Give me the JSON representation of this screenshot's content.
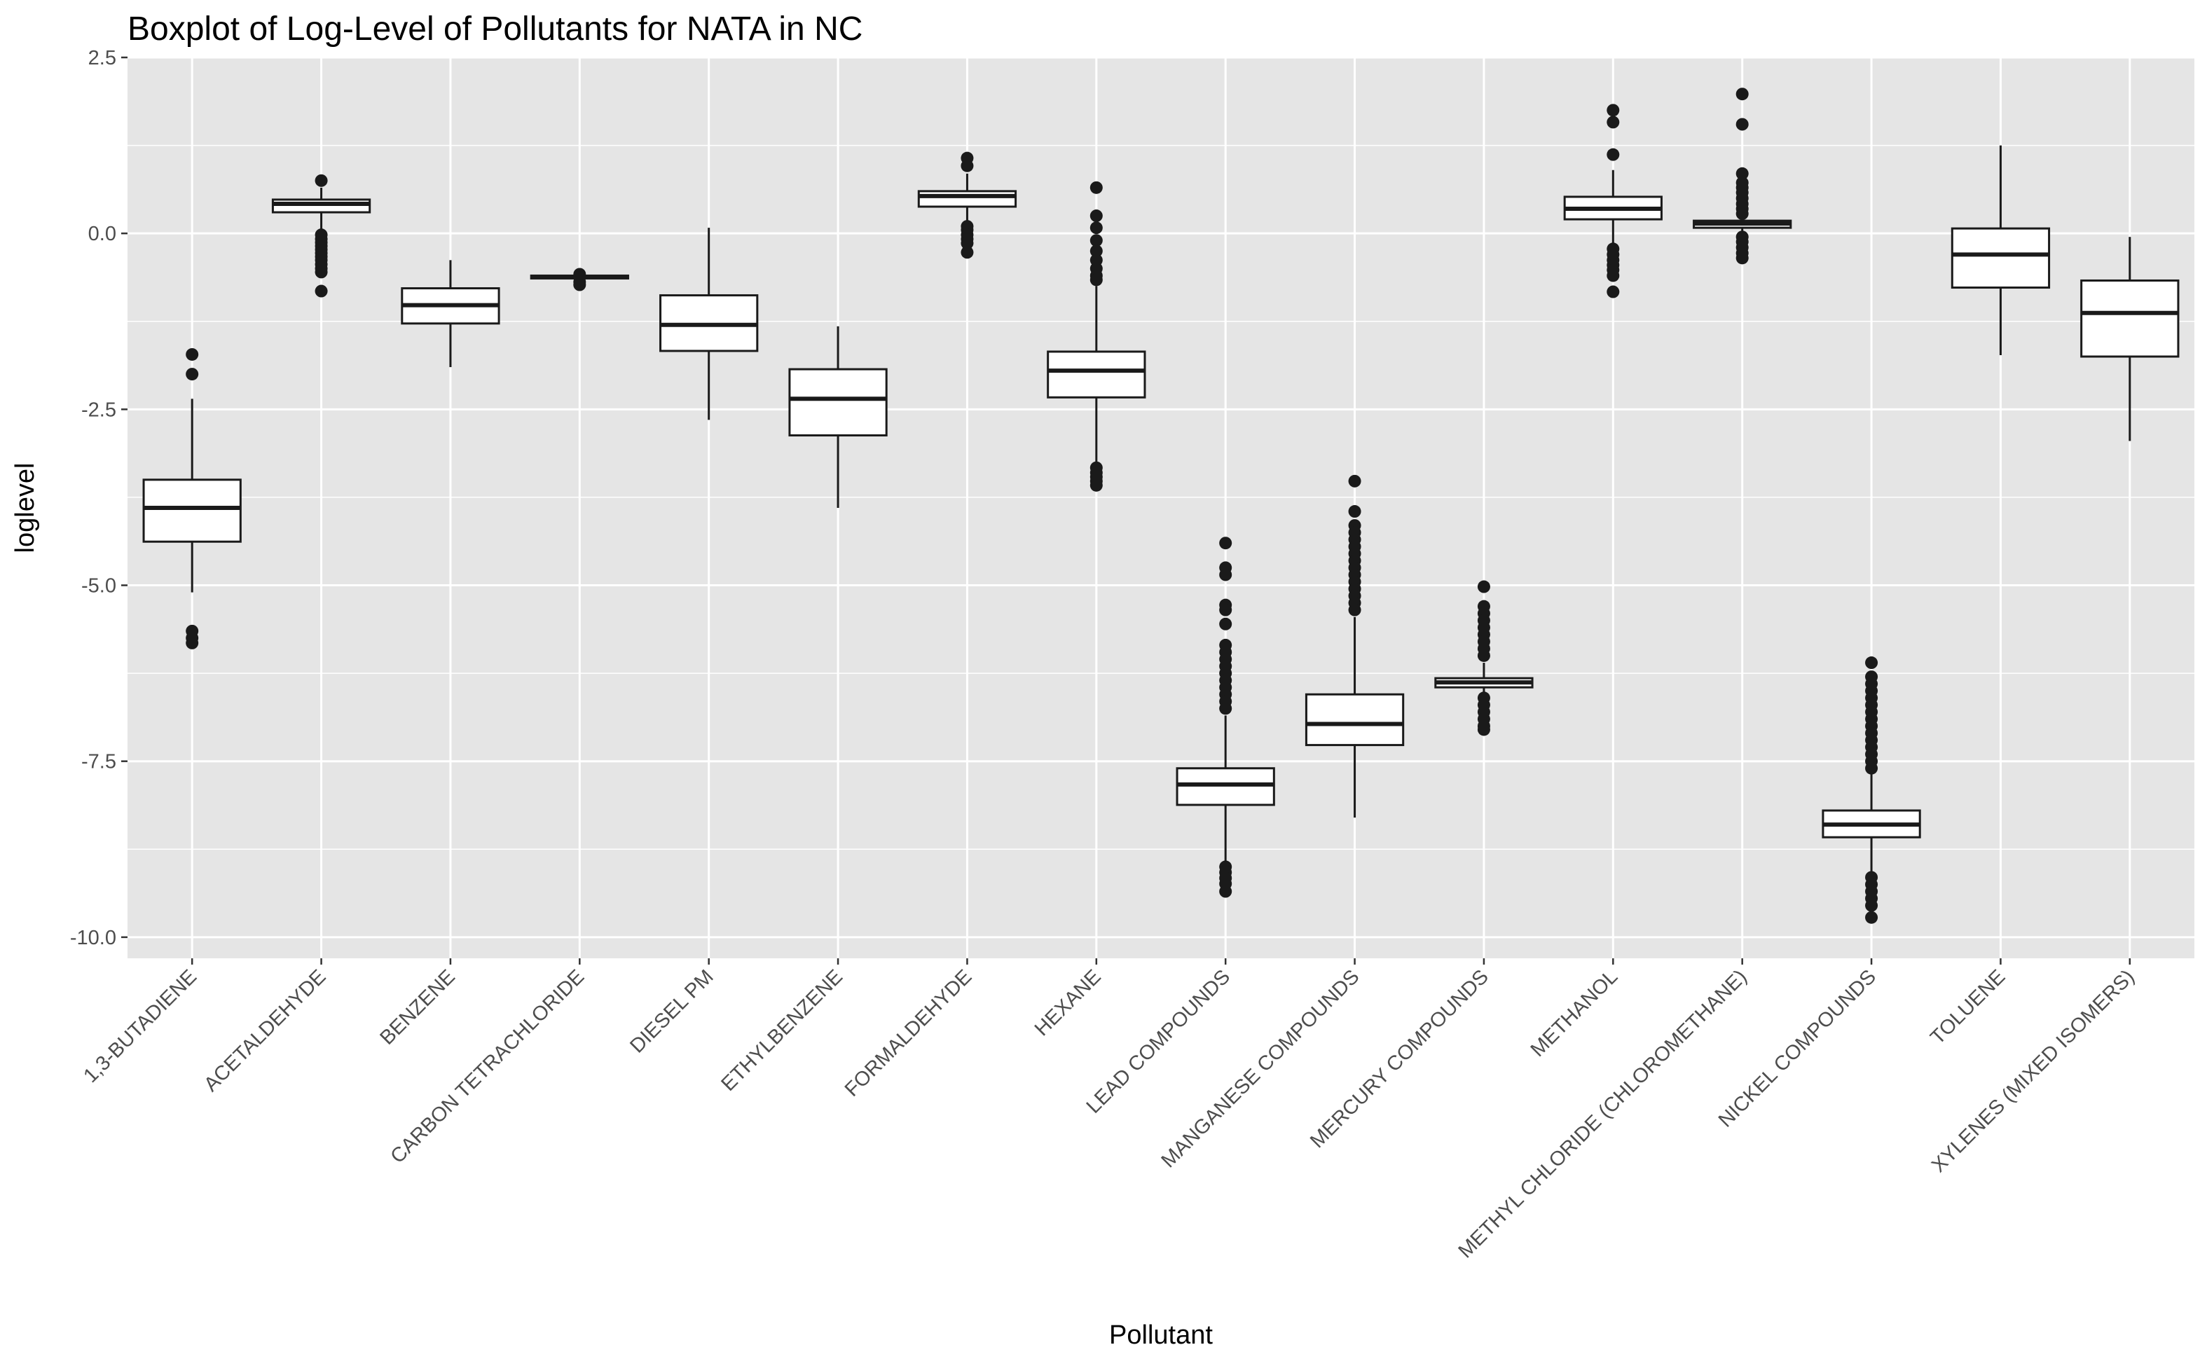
{
  "chart_data": {
    "type": "boxplot",
    "title": "Boxplot of Log-Level of Pollutants for NATA in NC",
    "xlabel": "Pollutant",
    "ylabel": "loglevel",
    "ylim": [
      -10.3,
      2.5
    ],
    "yticks": [
      2.5,
      0.0,
      -2.5,
      -5.0,
      -7.5,
      -10.0
    ],
    "ytick_labels": [
      "2.5",
      "0.0",
      "-2.5",
      "-5.0",
      "-7.5",
      "-10.0"
    ],
    "grid": true,
    "background": "#e5e5e5",
    "grid_color": "#ffffff",
    "box_fill": "#ffffff",
    "line_color": "#1a1a1a",
    "categories": [
      "1,3-BUTADIENE",
      "ACETALDEHYDE",
      "BENZENE",
      "CARBON TETRACHLORIDE",
      "DIESEL PM",
      "ETHYLBENZENE",
      "FORMALDEHYDE",
      "HEXANE",
      "LEAD COMPOUNDS",
      "MANGANESE COMPOUNDS",
      "MERCURY COMPOUNDS",
      "METHANOL",
      "METHYL CHLORIDE (CHLOROMETHANE)",
      "NICKEL COMPOUNDS",
      "TOLUENE",
      "XYLENES (MIXED ISOMERS)"
    ],
    "boxes": [
      {
        "category": "1,3-BUTADIENE",
        "whisker_low": -5.1,
        "q1": -4.38,
        "median": -3.9,
        "q3": -3.5,
        "whisker_high": -2.35,
        "outliers": [
          -1.72,
          -2.0,
          -5.65,
          -5.75,
          -5.82
        ]
      },
      {
        "category": "ACETALDEHYDE",
        "whisker_low": 0.0,
        "q1": 0.3,
        "median": 0.42,
        "q3": 0.48,
        "whisker_high": 0.65,
        "outliers": [
          0.75,
          -0.02,
          -0.08,
          -0.13,
          -0.18,
          -0.23,
          -0.28,
          -0.33,
          -0.38,
          -0.44,
          -0.5,
          -0.55,
          -0.82
        ]
      },
      {
        "category": "BENZENE",
        "whisker_low": -1.9,
        "q1": -1.28,
        "median": -1.02,
        "q3": -0.78,
        "whisker_high": -0.38,
        "outliers": []
      },
      {
        "category": "CARBON TETRACHLORIDE",
        "whisker_low": -0.66,
        "q1": -0.64,
        "median": -0.62,
        "q3": -0.6,
        "whisker_high": -0.58,
        "outliers": [
          -0.58,
          -0.69,
          -0.73
        ]
      },
      {
        "category": "DIESEL PM",
        "whisker_low": -2.65,
        "q1": -1.67,
        "median": -1.3,
        "q3": -0.88,
        "whisker_high": 0.08,
        "outliers": []
      },
      {
        "category": "ETHYLBENZENE",
        "whisker_low": -3.9,
        "q1": -2.87,
        "median": -2.35,
        "q3": -1.93,
        "whisker_high": -1.32,
        "outliers": []
      },
      {
        "category": "FORMALDEHYDE",
        "whisker_low": 0.15,
        "q1": 0.38,
        "median": 0.53,
        "q3": 0.6,
        "whisker_high": 0.85,
        "outliers": [
          1.07,
          0.96,
          0.1,
          0.05,
          -0.02,
          -0.08,
          -0.14,
          -0.27
        ]
      },
      {
        "category": "HEXANE",
        "whisker_low": -3.3,
        "q1": -2.33,
        "median": -1.95,
        "q3": -1.68,
        "whisker_high": -0.75,
        "outliers": [
          0.65,
          0.25,
          0.08,
          -0.1,
          -0.25,
          -0.38,
          -0.5,
          -0.6,
          -0.66,
          -3.33,
          -3.4,
          -3.46,
          -3.52,
          -3.58
        ]
      },
      {
        "category": "LEAD COMPOUNDS",
        "whisker_low": -8.95,
        "q1": -8.12,
        "median": -7.83,
        "q3": -7.6,
        "whisker_high": -6.85,
        "outliers": [
          -4.4,
          -4.75,
          -4.85,
          -5.28,
          -5.35,
          -5.55,
          -5.85,
          -5.95,
          -6.05,
          -6.15,
          -6.25,
          -6.35,
          -6.45,
          -6.55,
          -6.65,
          -6.75,
          -9.0,
          -9.08,
          -9.16,
          -9.24,
          -9.35
        ]
      },
      {
        "category": "MANGANESE COMPOUNDS",
        "whisker_low": -8.3,
        "q1": -7.27,
        "median": -6.97,
        "q3": -6.55,
        "whisker_high": -5.45,
        "outliers": [
          -3.52,
          -3.95,
          -4.15,
          -4.25,
          -4.35,
          -4.45,
          -4.55,
          -4.65,
          -4.75,
          -4.85,
          -4.95,
          -5.05,
          -5.15,
          -5.25,
          -5.35
        ]
      },
      {
        "category": "MERCURY COMPOUNDS",
        "whisker_low": -6.62,
        "q1": -6.45,
        "median": -6.38,
        "q3": -6.32,
        "whisker_high": -6.1,
        "outliers": [
          -5.02,
          -5.3,
          -5.4,
          -5.5,
          -5.6,
          -5.7,
          -5.8,
          -5.9,
          -6.0,
          -6.6,
          -6.7,
          -6.8,
          -6.9,
          -7.0,
          -7.05
        ]
      },
      {
        "category": "METHANOL",
        "whisker_low": -0.2,
        "q1": 0.2,
        "median": 0.35,
        "q3": 0.52,
        "whisker_high": 0.9,
        "outliers": [
          1.75,
          1.58,
          1.12,
          -0.22,
          -0.3,
          -0.38,
          -0.45,
          -0.52,
          -0.6,
          -0.83
        ]
      },
      {
        "category": "METHYL CHLORIDE (CHLOROMETHANE)",
        "whisker_low": 0.0,
        "q1": 0.08,
        "median": 0.14,
        "q3": 0.18,
        "whisker_high": 0.25,
        "outliers": [
          1.98,
          1.55,
          0.85,
          0.72,
          0.65,
          0.58,
          0.5,
          0.42,
          0.35,
          0.28,
          -0.05,
          -0.12,
          -0.2,
          -0.28,
          -0.35
        ]
      },
      {
        "category": "NICKEL COMPOUNDS",
        "whisker_low": -9.1,
        "q1": -8.58,
        "median": -8.4,
        "q3": -8.2,
        "whisker_high": -7.65,
        "outliers": [
          -6.1,
          -6.3,
          -6.4,
          -6.5,
          -6.6,
          -6.7,
          -6.8,
          -6.9,
          -7.0,
          -7.1,
          -7.2,
          -7.3,
          -7.4,
          -7.5,
          -7.6,
          -9.15,
          -9.25,
          -9.35,
          -9.45,
          -9.55,
          -9.72
        ]
      },
      {
        "category": "TOLUENE",
        "whisker_low": -1.73,
        "q1": -0.77,
        "median": -0.3,
        "q3": 0.07,
        "whisker_high": 1.25,
        "outliers": []
      },
      {
        "category": "XYLENES (MIXED ISOMERS)",
        "whisker_low": -2.95,
        "q1": -1.75,
        "median": -1.13,
        "q3": -0.67,
        "whisker_high": -0.05,
        "outliers": []
      }
    ]
  }
}
